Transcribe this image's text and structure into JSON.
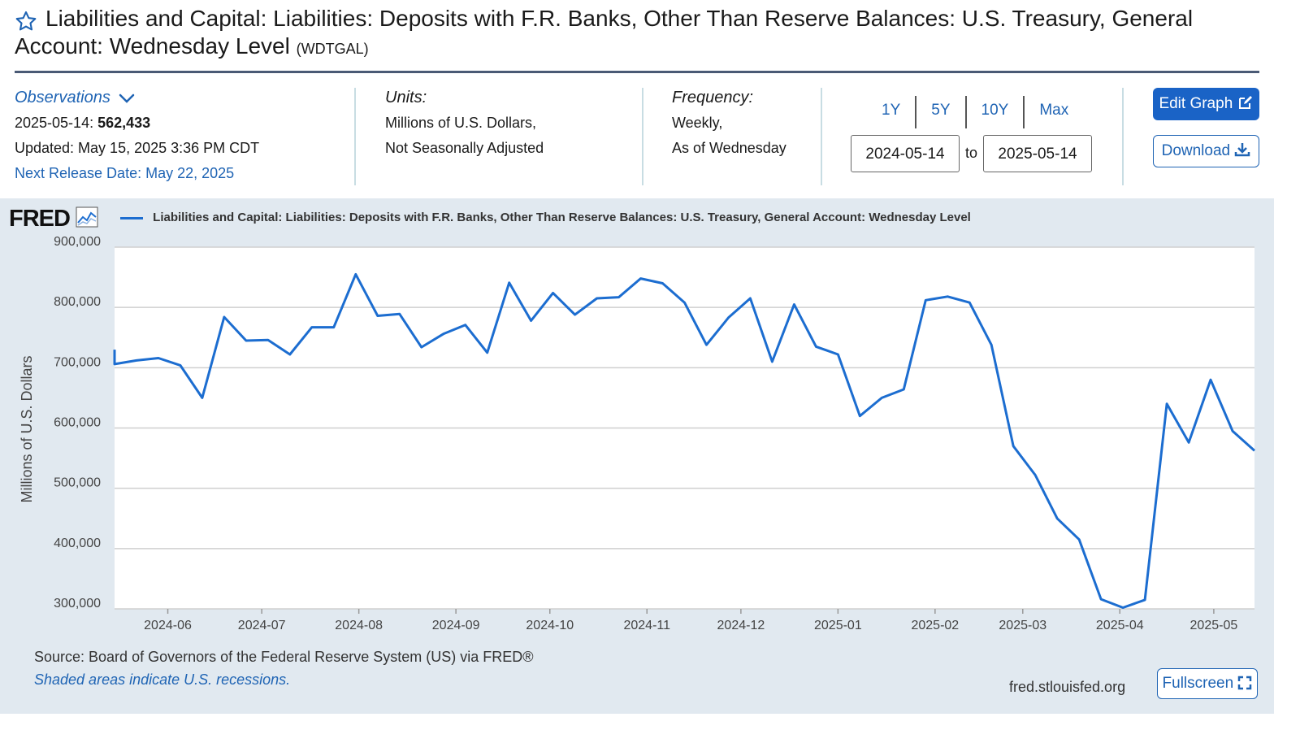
{
  "header": {
    "title_line1": "Liabilities and Capital: Liabilities: Deposits with F.R. Banks, Other Than Reserve Balances: U.S. Treasury, General",
    "title_line2": "Account: Wednesday Level",
    "series_id": "(WDTGAL)"
  },
  "observations": {
    "label": "Observations",
    "date": "2025-05-14:",
    "value": "562,433",
    "updated": "Updated: May 15, 2025 3:36 PM CDT",
    "next_release": "Next Release Date: May 22, 2025"
  },
  "units": {
    "label": "Units:",
    "line1": "Millions of U.S. Dollars,",
    "line2": "Not Seasonally Adjusted"
  },
  "frequency": {
    "label": "Frequency:",
    "line1": "Weekly,",
    "line2": "As of Wednesday"
  },
  "range": {
    "buttons": [
      "1Y",
      "5Y",
      "10Y",
      "Max"
    ],
    "start": "2024-05-14",
    "to": "to",
    "end": "2025-05-14"
  },
  "actions": {
    "edit": "Edit Graph",
    "download": "Download",
    "fullscreen": "Fullscreen"
  },
  "logo": "FRED",
  "footer": {
    "source": "Source: Board of Governors of the Federal Reserve System (US) via FRED®",
    "recessions": "Shaded areas indicate U.S. recessions.",
    "site": "fred.stlouisfed.org"
  },
  "colors": {
    "accent": "#1f64b4",
    "line": "#1c6dd0",
    "panel": "#e1e9f0"
  },
  "chart_data": {
    "type": "line",
    "title": "Liabilities and Capital: Liabilities: Deposits with F.R. Banks, Other Than Reserve Balances: U.S. Treasury, General Account: Wednesday Level",
    "ylabel": "Millions of U.S. Dollars",
    "ylim": [
      300000,
      900000
    ],
    "yticks": [
      "300,000",
      "400,000",
      "500,000",
      "600,000",
      "700,000",
      "800,000",
      "900,000"
    ],
    "xticks": [
      "2024-06",
      "2024-07",
      "2024-08",
      "2024-09",
      "2024-10",
      "2024-11",
      "2024-12",
      "2025-01",
      "2025-02",
      "2025-03",
      "2025-04",
      "2025-05"
    ],
    "grid": true,
    "legend": "top",
    "series": [
      {
        "name": "Liabilities and Capital: Liabilities: Deposits with F.R. Banks, Other Than Reserve Balances: U.S. Treasury, General Account: Wednesday Level",
        "x": [
          "2024-05-15",
          "2024-05-22",
          "2024-05-29",
          "2024-06-05",
          "2024-06-12",
          "2024-06-19",
          "2024-06-26",
          "2024-07-03",
          "2024-07-10",
          "2024-07-17",
          "2024-07-24",
          "2024-07-31",
          "2024-08-07",
          "2024-08-14",
          "2024-08-21",
          "2024-08-28",
          "2024-09-04",
          "2024-09-11",
          "2024-09-18",
          "2024-09-25",
          "2024-10-02",
          "2024-10-09",
          "2024-10-16",
          "2024-10-23",
          "2024-10-30",
          "2024-11-06",
          "2024-11-13",
          "2024-11-20",
          "2024-11-27",
          "2024-12-04",
          "2024-12-11",
          "2024-12-18",
          "2024-12-25",
          "2025-01-01",
          "2025-01-08",
          "2025-01-15",
          "2025-01-22",
          "2025-01-29",
          "2025-02-05",
          "2025-02-12",
          "2025-02-19",
          "2025-02-26",
          "2025-03-05",
          "2025-03-12",
          "2025-03-19",
          "2025-03-26",
          "2025-04-02",
          "2025-04-09",
          "2025-04-16",
          "2025-04-23",
          "2025-04-30",
          "2025-05-07",
          "2025-05-14"
        ],
        "values": [
          706000,
          712000,
          716000,
          704000,
          650000,
          784000,
          745000,
          746000,
          722000,
          767000,
          767000,
          855000,
          786000,
          789000,
          734000,
          756000,
          771000,
          725000,
          841000,
          778000,
          824000,
          788000,
          815000,
          817000,
          848000,
          840000,
          808000,
          738000,
          783000,
          815000,
          710000,
          805000,
          735000,
          722000,
          620000,
          650000,
          664000,
          812000,
          818000,
          808000,
          738000,
          570000,
          522000,
          450000,
          415000,
          316000,
          302000,
          315000,
          640000,
          576000,
          680000,
          595000,
          562433
        ]
      }
    ]
  }
}
